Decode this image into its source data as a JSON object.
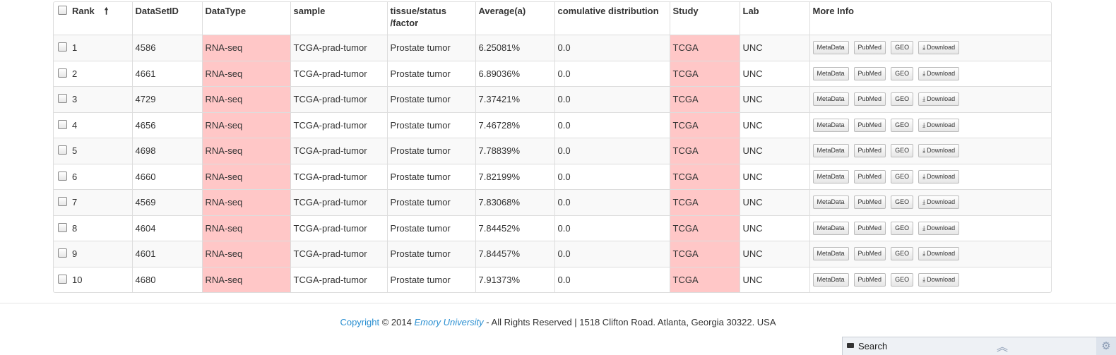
{
  "table": {
    "headers": {
      "rank": "Rank",
      "sort_arrow": "🠕",
      "dataset_id": "DataSetID",
      "datatype": "DataType",
      "sample": "sample",
      "tissue_line1": "tissue/status",
      "tissue_line2": "/factor",
      "average": "Average(a)",
      "cumulative": "comulative distribution",
      "study": "Study",
      "lab": "Lab",
      "more_info": "More Info"
    },
    "buttons": {
      "metadata": "MetaData",
      "pubmed": "PubMed",
      "geo": "GEO",
      "download": "Download"
    },
    "highlight_color": "#ffc7c7",
    "rows": [
      {
        "rank": "1",
        "id": "4586",
        "type": "RNA-seq",
        "sample": "TCGA-prad-tumor",
        "tissue": "Prostate tumor",
        "avg": "6.25081%",
        "cum": "0.0",
        "study": "TCGA",
        "lab": "UNC"
      },
      {
        "rank": "2",
        "id": "4661",
        "type": "RNA-seq",
        "sample": "TCGA-prad-tumor",
        "tissue": "Prostate tumor",
        "avg": "6.89036%",
        "cum": "0.0",
        "study": "TCGA",
        "lab": "UNC"
      },
      {
        "rank": "3",
        "id": "4729",
        "type": "RNA-seq",
        "sample": "TCGA-prad-tumor",
        "tissue": "Prostate tumor",
        "avg": "7.37421%",
        "cum": "0.0",
        "study": "TCGA",
        "lab": "UNC"
      },
      {
        "rank": "4",
        "id": "4656",
        "type": "RNA-seq",
        "sample": "TCGA-prad-tumor",
        "tissue": "Prostate tumor",
        "avg": "7.46728%",
        "cum": "0.0",
        "study": "TCGA",
        "lab": "UNC"
      },
      {
        "rank": "5",
        "id": "4698",
        "type": "RNA-seq",
        "sample": "TCGA-prad-tumor",
        "tissue": "Prostate tumor",
        "avg": "7.78839%",
        "cum": "0.0",
        "study": "TCGA",
        "lab": "UNC"
      },
      {
        "rank": "6",
        "id": "4660",
        "type": "RNA-seq",
        "sample": "TCGA-prad-tumor",
        "tissue": "Prostate tumor",
        "avg": "7.82199%",
        "cum": "0.0",
        "study": "TCGA",
        "lab": "UNC"
      },
      {
        "rank": "7",
        "id": "4569",
        "type": "RNA-seq",
        "sample": "TCGA-prad-tumor",
        "tissue": "Prostate tumor",
        "avg": "7.83068%",
        "cum": "0.0",
        "study": "TCGA",
        "lab": "UNC"
      },
      {
        "rank": "8",
        "id": "4604",
        "type": "RNA-seq",
        "sample": "TCGA-prad-tumor",
        "tissue": "Prostate tumor",
        "avg": "7.84452%",
        "cum": "0.0",
        "study": "TCGA",
        "lab": "UNC"
      },
      {
        "rank": "9",
        "id": "4601",
        "type": "RNA-seq",
        "sample": "TCGA-prad-tumor",
        "tissue": "Prostate tumor",
        "avg": "7.84457%",
        "cum": "0.0",
        "study": "TCGA",
        "lab": "UNC"
      },
      {
        "rank": "10",
        "id": "4680",
        "type": "RNA-seq",
        "sample": "TCGA-prad-tumor",
        "tissue": "Prostate tumor",
        "avg": "7.91373%",
        "cum": "0.0",
        "study": "TCGA",
        "lab": "UNC"
      }
    ]
  },
  "footer": {
    "copyright_link": "Copyright",
    "copyright_year": " © 2014 ",
    "university_link": "Emory University",
    "rest": " - All Rights Reserved | 1518 Clifton Road. Atlanta, Georgia 30322. USA"
  },
  "search_bar": {
    "label": "Search",
    "icons": [
      "folder-icon",
      "double-chevron-up-icon",
      "gear-icon"
    ]
  }
}
